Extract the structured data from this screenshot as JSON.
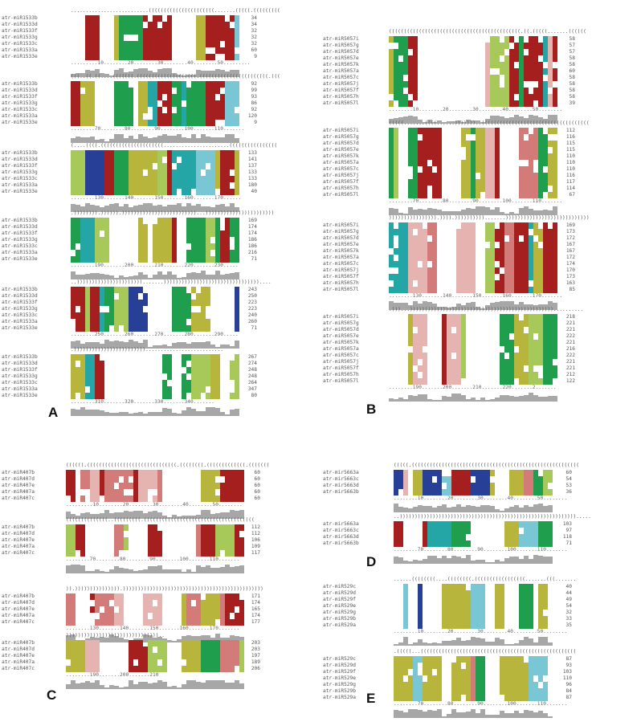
{
  "colors": {
    "red": "#a51f1f",
    "lightred": "#d27b78",
    "pink": "#e6b4b0",
    "yellow": "#b7b53b",
    "lime": "#a6c95a",
    "green": "#1f9e4d",
    "teal": "#24a6a6",
    "blue": "#283f97",
    "cyan": "#79c6d4",
    "bar": "#a7a7a7"
  },
  "panels": [
    {
      "letter": "A",
      "names": [
        "atr-miR1533b",
        "atr-miR1533d",
        "atr-miR1533f",
        "atr-miR1533g",
        "atr-miR1533c",
        "atr-miR1533a",
        "atr-miR1533e"
      ],
      "blocks": [
        {
          "struct": "..........................((((((((((((((((((((((.......(((((.(((((((((",
          "ruler": ".........10........20........30........40........50.........",
          "nums": [
            "34",
            "34",
            "32",
            "32",
            "32",
            "60",
            "9"
          ]
        },
        {
          "struct": "(((..((.((....(((((((.((((((((((((((((((((.(((((((((((((((((((((((.(((",
          "ruler": "........70........80........90........100.......110.......",
          "nums": [
            "92",
            "99",
            "93",
            "86",
            "92",
            "120",
            "9"
          ]
        },
        {
          "struct": "(....((((.(((((((((((((((((((((......................((((((((((((((((",
          "ruler": "........130.......140.......150.......160.......170......",
          "nums": [
            "133",
            "141",
            "137",
            "133",
            "133",
            "180",
            "40"
          ]
        },
        {
          "struct": ".)))))))).)))))).)))))))))))))))))))))))))...)))))))))))))))))))))))",
          "ruler": "........190.......200.......210.......220.......230.....",
          "nums": [
            "169",
            "174",
            "174",
            "186",
            "186",
            "216",
            "71"
          ]
        },
        {
          "struct": "..)))))))))))))))))))))).......))))))))))))))))))))))))))))))))....",
          "ruler": "........250.......260.......270.......280.......290.....",
          "nums": [
            "243",
            "250",
            "223",
            "223",
            "240",
            "260",
            "71"
          ]
        },
        {
          "struct": ".))))))))))))))))))))))))..........................",
          "ruler": "........310.......320.......330.......340.......",
          "nums": [
            "267",
            "274",
            "248",
            "248",
            "264",
            "347",
            "80"
          ]
        }
      ]
    },
    {
      "letter": "B",
      "names": [
        "atr-miR5057i",
        "atr-miR5057g",
        "atr-miR5057d",
        "atr-miR5057e",
        "atr-miR5057k",
        "atr-miR5057a",
        "atr-miR5057c",
        "atr-miR5057j",
        "atr-miR5057f",
        "atr-miR5057h",
        "atr-miR5057l"
      ],
      "blocks": [
        {
          "struct": "((((((((((((((((((((((((((((((((((((((((((((.((.(((((.......((((((",
          "ruler": "........10........20........30........40........50........",
          "nums": [
            "58",
            "57",
            "57",
            "58",
            "58",
            "60",
            "58",
            "58",
            "58",
            "58",
            "39"
          ]
        },
        {
          "struct": "(((((.......((((......)))))))..((((((((((((((((((((((((((((((((((((",
          "ruler": "........70........80........90........100.......110.......",
          "nums": [
            "112",
            "116",
            "115",
            "115",
            "110",
            "110",
            "110",
            "116",
            "117",
            "114",
            "67"
          ]
        },
        {
          "struct": ")))))))))))))))).)))).)))))))))).......))))))))))))))))))))))))))))",
          "ruler": "........130.......140.......150.......160.......170.......",
          "nums": [
            "169",
            "173",
            "172",
            "167",
            "167",
            "172",
            "174",
            "170",
            "173",
            "163",
            "85"
          ]
        },
        {
          "struct": ".)))...))))))))))))))))))))))))))))))))))))))))))))))))..........",
          "ruler": "........190.......200.......210.......220.......2.......",
          "nums": [
            "218",
            "221",
            "221",
            "222",
            "221",
            "216",
            "222",
            "221",
            "221",
            "212",
            "122"
          ]
        }
      ]
    },
    {
      "letter": "C",
      "names": [
        "atr-miR407b",
        "atr-miR407d",
        "atr-miR407e",
        "atr-miR407a",
        "atr-miR407c"
      ],
      "blocks": [
        {
          "struct": "((((((.((((((((((((((((((((((((((((((.((((((((.(((((((((((((.(((((((",
          "ruler": ".........10........20........30........40........50........",
          "nums": [
            "60",
            "60",
            "60",
            "60",
            "60"
          ]
        },
        {
          "struct": "((((((((((((((..(((((((((.(((((((((((((((((((((((((((((((((((((",
          "ruler": "........70........80........90........100.......110.......",
          "nums": [
            "112",
            "112",
            "106",
            "109",
            "117"
          ]
        },
        {
          "struct": ")).))))))))))))))).)))))))))))))))))))))))))))))))))))))))))))))))",
          "ruler": "........130.......140.......150.......160.......170.......",
          "nums": [
            "171",
            "174",
            "165",
            "174",
            "177"
          ]
        },
        {
          "struct": ")))))))))))))))))))))))))))))))..",
          "ruler": "........190.......200.......210",
          "nums": [
            "203",
            "203",
            "197",
            "189",
            "206"
          ]
        }
      ]
    },
    {
      "letter": "D",
      "names": [
        "atr-mir5663a",
        "atr-mir5663c",
        "atr-mir5663d",
        "atr-mir5663b"
      ],
      "blocks": [
        {
          "struct": "(((((.((((((((((((((((((((((((((((((((((((((((((((((((((((((((",
          "ruler": "........10........20........30........40........50........",
          "nums": [
            "60",
            "54",
            "53",
            "36"
          ]
        },
        {
          "struct": "..))))))))))))))))))))))))))))))))))))))))))))))))))))))))))).....",
          "ruler": "........70........80........90........100.......110.......",
          "nums": [
            "103",
            "97",
            "118",
            "71"
          ]
        }
      ]
    },
    {
      "letter": "E",
      "names": [
        "atr-miR529c",
        "atr-miR529d",
        "atr-miR529f",
        "atr-miR529e",
        "atr-miR529g",
        "atr-miR529b",
        "atr-miR529a"
      ],
      "blocks": [
        {
          "struct": "......((((((((....((((((((.(((((((((((((((((.......(((.......",
          "ruler": "........10........20........30........40........50........",
          "nums": [
            "40",
            "44",
            "49",
            "54",
            "32",
            "33",
            "35"
          ]
        },
        {
          "struct": ".(((((...((((((((((((((((((((((((((((((((((((((((((((((((((((",
          "ruler": "........70........80........90........100.......110.......",
          "nums": [
            "87",
            "93",
            "103",
            "110",
            "96",
            "84",
            "87"
          ]
        }
      ]
    }
  ]
}
